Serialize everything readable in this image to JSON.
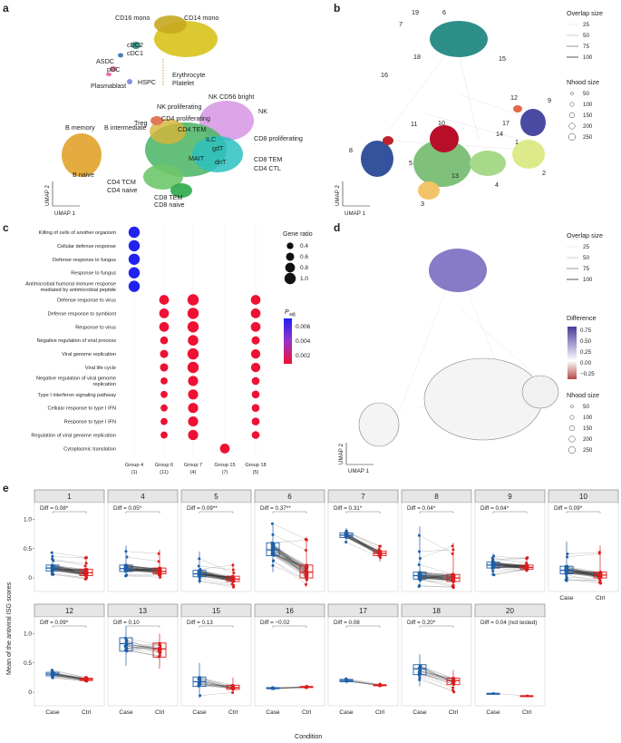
{
  "panel_labels": [
    "a",
    "b",
    "c",
    "d",
    "e"
  ],
  "panel_a": {
    "cell_types": [
      "CD16 mono",
      "CD14 mono",
      "cDC2",
      "cDC1",
      "ASDC",
      "pDC",
      "HSPC",
      "Erythrocyte",
      "Platelet",
      "Plasmablast",
      "NK CD56 bright",
      "NK proliferating",
      "NK",
      "Treg",
      "CD4 proliferating",
      "CD4 TEM",
      "ILC",
      "gdT",
      "CD8 proliferating",
      "MAIT",
      "dnT",
      "CD8 TEM",
      "CD4 CTL",
      "B memory",
      "B intermediate",
      "B naive",
      "CD4 TCM",
      "CD4 naive",
      "CD8 TEM",
      "CD8 naive"
    ],
    "xlabel": "UMAP 1",
    "ylabel": "UMAP 2"
  },
  "panel_b": {
    "neighbourhood_labels": [
      "19",
      "6",
      "7",
      "18",
      "15",
      "16",
      "11",
      "10",
      "12",
      "9",
      "17",
      "14",
      "8",
      "1",
      "5",
      "13",
      "4",
      "2",
      "3"
    ],
    "overlap_legend_title": "Overlap size",
    "overlap_legend_values": [
      "25",
      "50",
      "75",
      "100"
    ],
    "nhood_legend_title": "Nhood size",
    "nhood_legend_values": [
      "50",
      "100",
      "150",
      "200",
      "250"
    ],
    "xlabel": "UMAP 1",
    "ylabel": "UMAP 2"
  },
  "panel_d": {
    "overlap_legend_title": "Overlap size",
    "overlap_legend_values": [
      "25",
      "50",
      "75",
      "100"
    ],
    "difference_legend_title": "Difference",
    "difference_legend_values": [
      "0.75",
      "0.50",
      "0.25",
      "0.00",
      "−0.25"
    ],
    "nhood_legend_title": "Nhood size",
    "nhood_legend_values": [
      "50",
      "100",
      "150",
      "200",
      "250"
    ],
    "xlabel": "UMAP 1",
    "ylabel": "UMAP 2"
  },
  "chart_data": [
    {
      "panel": "c",
      "type": "scatter",
      "subtype": "dot-plot",
      "terms": [
        "Killing of cells of another organism",
        "Cellular defense response",
        "Defense response to fungus",
        "Response to fungus",
        "Antimicrobial humoral immune response mediated by antimicrobial peptide",
        "Defense response to virus",
        "Defense response to symbiont",
        "Response to virus",
        "Negative regulation of viral process",
        "Viral genome replication",
        "Viral life cycle",
        "Negative regulation of viral genome replication",
        "Type I interferon signaling pathway",
        "Cellular response to type I IFN",
        "Response to type I IFN",
        "Regulation of viral genome replication",
        "Cytoplasmic translation"
      ],
      "groups": [
        "Group 4",
        "Group 6",
        "Group 7",
        "Group 15",
        "Group 18"
      ],
      "group_counts": [
        "(1)",
        "(11)",
        "(4)",
        "(7)",
        "(5)"
      ],
      "points": [
        {
          "term": 0,
          "group": 0,
          "ratio": 1.0,
          "padj": 0.0065
        },
        {
          "term": 1,
          "group": 0,
          "ratio": 1.0,
          "padj": 0.0065
        },
        {
          "term": 2,
          "group": 0,
          "ratio": 1.0,
          "padj": 0.0065
        },
        {
          "term": 3,
          "group": 0,
          "ratio": 1.0,
          "padj": 0.0065
        },
        {
          "term": 4,
          "group": 0,
          "ratio": 1.0,
          "padj": 0.0065
        },
        {
          "term": 5,
          "group": 1,
          "ratio": 0.8,
          "padj": 0.0005
        },
        {
          "term": 6,
          "group": 1,
          "ratio": 0.8,
          "padj": 0.0005
        },
        {
          "term": 7,
          "group": 1,
          "ratio": 0.8,
          "padj": 0.0005
        },
        {
          "term": 8,
          "group": 1,
          "ratio": 0.55,
          "padj": 0.0005
        },
        {
          "term": 9,
          "group": 1,
          "ratio": 0.6,
          "padj": 0.0005
        },
        {
          "term": 10,
          "group": 1,
          "ratio": 0.6,
          "padj": 0.0005
        },
        {
          "term": 11,
          "group": 1,
          "ratio": 0.45,
          "padj": 0.0005
        },
        {
          "term": 12,
          "group": 1,
          "ratio": 0.45,
          "padj": 0.0005
        },
        {
          "term": 13,
          "group": 1,
          "ratio": 0.45,
          "padj": 0.0005
        },
        {
          "term": 14,
          "group": 1,
          "ratio": 0.45,
          "padj": 0.0005
        },
        {
          "term": 15,
          "group": 1,
          "ratio": 0.45,
          "padj": 0.0005
        },
        {
          "term": 5,
          "group": 2,
          "ratio": 1.0,
          "padj": 0.0005
        },
        {
          "term": 6,
          "group": 2,
          "ratio": 1.0,
          "padj": 0.0005
        },
        {
          "term": 7,
          "group": 2,
          "ratio": 1.0,
          "padj": 0.0005
        },
        {
          "term": 8,
          "group": 2,
          "ratio": 0.9,
          "padj": 0.0005
        },
        {
          "term": 9,
          "group": 2,
          "ratio": 1.0,
          "padj": 0.0005
        },
        {
          "term": 10,
          "group": 2,
          "ratio": 1.0,
          "padj": 0.0005
        },
        {
          "term": 11,
          "group": 2,
          "ratio": 0.85,
          "padj": 0.0005
        },
        {
          "term": 12,
          "group": 2,
          "ratio": 0.85,
          "padj": 0.0005
        },
        {
          "term": 13,
          "group": 2,
          "ratio": 0.85,
          "padj": 0.0005
        },
        {
          "term": 14,
          "group": 2,
          "ratio": 0.85,
          "padj": 0.0005
        },
        {
          "term": 15,
          "group": 2,
          "ratio": 0.85,
          "padj": 0.0005
        },
        {
          "term": 16,
          "group": 3,
          "ratio": 0.8,
          "padj": 0.0005
        },
        {
          "term": 5,
          "group": 4,
          "ratio": 0.8,
          "padj": 0.0005
        },
        {
          "term": 6,
          "group": 4,
          "ratio": 0.8,
          "padj": 0.0005
        },
        {
          "term": 7,
          "group": 4,
          "ratio": 0.8,
          "padj": 0.0005
        },
        {
          "term": 8,
          "group": 4,
          "ratio": 0.6,
          "padj": 0.0005
        },
        {
          "term": 9,
          "group": 4,
          "ratio": 0.75,
          "padj": 0.0005
        },
        {
          "term": 10,
          "group": 4,
          "ratio": 0.75,
          "padj": 0.0005
        },
        {
          "term": 11,
          "group": 4,
          "ratio": 0.55,
          "padj": 0.0005
        },
        {
          "term": 12,
          "group": 4,
          "ratio": 0.55,
          "padj": 0.0005
        },
        {
          "term": 13,
          "group": 4,
          "ratio": 0.55,
          "padj": 0.0005
        },
        {
          "term": 14,
          "group": 4,
          "ratio": 0.55,
          "padj": 0.0005
        },
        {
          "term": 15,
          "group": 4,
          "ratio": 0.55,
          "padj": 0.0005
        }
      ],
      "size_legend_title": "Gene ratio",
      "size_legend_values": [
        "0.4",
        "0.6",
        "0.8",
        "1.0"
      ],
      "size_legend_numbers": [
        0.4,
        0.6,
        0.8,
        1.0
      ],
      "color_legend_title": "P",
      "color_legend_subscript": "adj",
      "color_legend_values": [
        "0.006",
        "0.004",
        "0.002"
      ],
      "colors": {
        "high": "#2222ee",
        "mid": "#9933cc",
        "low": "#ee1133"
      }
    },
    {
      "panel": "e",
      "type": "box-paired",
      "ylabel": "Mean of the antiviral ISG scores",
      "xlabel": "Condition",
      "conditions": [
        "Case",
        "Ctrl"
      ],
      "ylim": [
        -0.2,
        1.1
      ],
      "yticks": [
        "0",
        "0.5",
        "1.0"
      ],
      "ytick_values": [
        0,
        0.5,
        1.0
      ],
      "colors": {
        "case": "#1f5fa8",
        "ctrl": "#dd1c1c"
      },
      "facets": [
        {
          "id": "1",
          "diff": "Diff = 0.08*",
          "n": 120,
          "case": [
            0.03,
            0.12,
            0.17,
            0.22,
            0.45
          ],
          "ctrl": [
            -0.05,
            0.04,
            0.09,
            0.15,
            0.38
          ]
        },
        {
          "id": "4",
          "diff": "Diff = 0.05*",
          "n": 120,
          "case": [
            0.02,
            0.11,
            0.16,
            0.22,
            0.55
          ],
          "ctrl": [
            -0.02,
            0.07,
            0.11,
            0.17,
            0.48
          ]
        },
        {
          "id": "5",
          "diff": "Diff = 0.09**",
          "n": 120,
          "case": [
            -0.1,
            0.02,
            0.07,
            0.13,
            0.45
          ],
          "ctrl": [
            -0.16,
            -0.06,
            -0.02,
            0.03,
            0.25
          ]
        },
        {
          "id": "6",
          "diff": "Diff = 0.37**",
          "n": 140,
          "case": [
            0.1,
            0.38,
            0.48,
            0.6,
            0.95
          ],
          "ctrl": [
            -0.15,
            0.0,
            0.1,
            0.22,
            0.7
          ]
        },
        {
          "id": "7",
          "diff": "Diff = 0.31*",
          "n": 40,
          "case": [
            0.6,
            0.69,
            0.73,
            0.77,
            0.85
          ],
          "ctrl": [
            0.28,
            0.38,
            0.42,
            0.46,
            0.55
          ]
        },
        {
          "id": "8",
          "diff": "Diff = 0.04*",
          "n": 110,
          "case": [
            -0.15,
            -0.02,
            0.04,
            0.1,
            0.88
          ],
          "ctrl": [
            -0.18,
            -0.06,
            0.0,
            0.06,
            0.6
          ]
        },
        {
          "id": "9",
          "diff": "Diff = 0.04*",
          "n": 110,
          "case": [
            0.05,
            0.17,
            0.22,
            0.27,
            0.42
          ],
          "ctrl": [
            0.1,
            0.15,
            0.18,
            0.22,
            0.35
          ]
        },
        {
          "id": "10",
          "diff": "Diff = 0.09*",
          "n": 110,
          "case": [
            -0.05,
            0.07,
            0.13,
            0.2,
            0.62
          ],
          "ctrl": [
            -0.12,
            0.0,
            0.05,
            0.1,
            0.55
          ]
        },
        {
          "id": "12",
          "diff": "Diff = 0.09*",
          "n": 30,
          "case": [
            0.24,
            0.28,
            0.31,
            0.34,
            0.39
          ],
          "ctrl": [
            0.17,
            0.2,
            0.22,
            0.24,
            0.28
          ]
        },
        {
          "id": "13",
          "diff": "Diff = 0.10",
          "n": 22,
          "case": [
            0.45,
            0.7,
            0.83,
            0.93,
            1.12
          ],
          "ctrl": [
            0.4,
            0.6,
            0.74,
            0.84,
            1.0
          ]
        },
        {
          "id": "15",
          "diff": "Diff = 0.13",
          "n": 22,
          "case": [
            -0.1,
            0.1,
            0.18,
            0.26,
            0.5
          ],
          "ctrl": [
            -0.02,
            0.05,
            0.08,
            0.12,
            0.25
          ]
        },
        {
          "id": "16",
          "diff": "Diff = −0.02",
          "n": 12,
          "case": [
            0.04,
            0.06,
            0.07,
            0.08,
            0.1
          ],
          "ctrl": [
            0.06,
            0.08,
            0.09,
            0.1,
            0.13
          ]
        },
        {
          "id": "17",
          "diff": "Diff = 0.08",
          "n": 10,
          "case": [
            0.15,
            0.18,
            0.2,
            0.22,
            0.25
          ],
          "ctrl": [
            0.09,
            0.11,
            0.12,
            0.13,
            0.15
          ]
        },
        {
          "id": "18",
          "diff": "Diff = 0.20*",
          "n": 24,
          "case": [
            0.1,
            0.3,
            0.4,
            0.47,
            0.65
          ],
          "ctrl": [
            -0.02,
            0.13,
            0.2,
            0.24,
            0.38
          ]
        },
        {
          "id": "20",
          "diff": "Diff = 0.04 (not tested)",
          "n": 1,
          "case": [
            -0.02,
            -0.02,
            -0.02,
            -0.02,
            -0.02
          ],
          "ctrl": [
            -0.06,
            -0.06,
            -0.06,
            -0.06,
            -0.06
          ]
        }
      ]
    }
  ]
}
